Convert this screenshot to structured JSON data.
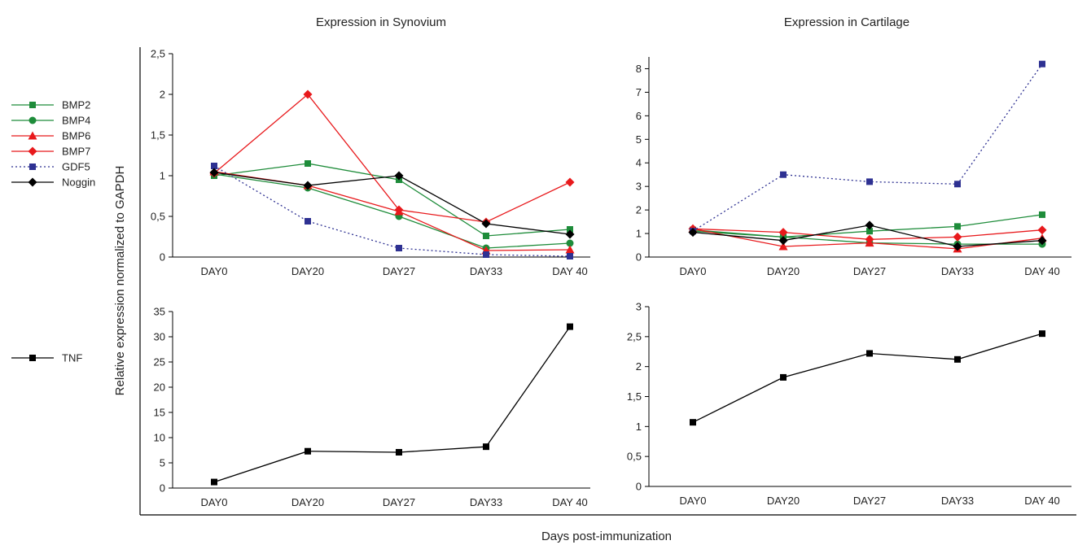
{
  "figure": {
    "ylabel": "Relative expression normalized to GAPDH",
    "xlabel": "Days post-immunization"
  },
  "legend": {
    "bmp": [
      {
        "name": "BMP2",
        "color": "#1e8c3a",
        "marker": "square",
        "dash": false
      },
      {
        "name": "BMP4",
        "color": "#1e8c3a",
        "marker": "circle",
        "dash": false
      },
      {
        "name": "BMP6",
        "color": "#e8191c",
        "marker": "triangle",
        "dash": false
      },
      {
        "name": "BMP7",
        "color": "#e8191c",
        "marker": "diamond",
        "dash": false
      },
      {
        "name": "GDF5",
        "color": "#2e3192",
        "marker": "square",
        "dash": true
      },
      {
        "name": "Noggin",
        "color": "#000000",
        "marker": "diamond",
        "dash": false
      }
    ],
    "tnf": [
      {
        "name": "TNF",
        "color": "#000000",
        "marker": "square",
        "dash": false
      }
    ]
  },
  "chart_data": [
    {
      "id": "synovium-bmp",
      "type": "line",
      "title": "Expression in Synovium",
      "categories": [
        "DAY0",
        "DAY20",
        "DAY27",
        "DAY33",
        "DAY 40"
      ],
      "ylim": [
        0,
        2.5
      ],
      "yticks": [
        "0",
        "0,5",
        "1",
        "1,5",
        "2",
        "2,5"
      ],
      "ytick_values": [
        0,
        0.5,
        1,
        1.5,
        2,
        2.5
      ],
      "grid": false,
      "series": [
        {
          "name": "BMP2",
          "color": "#1e8c3a",
          "marker": "square",
          "dash": false,
          "values": [
            1.0,
            1.15,
            0.95,
            0.26,
            0.34
          ]
        },
        {
          "name": "BMP4",
          "color": "#1e8c3a",
          "marker": "circle",
          "dash": false,
          "values": [
            1.02,
            0.85,
            0.5,
            0.11,
            0.17
          ]
        },
        {
          "name": "BMP6",
          "color": "#e8191c",
          "marker": "triangle",
          "dash": false,
          "values": [
            1.05,
            0.88,
            0.56,
            0.08,
            0.09
          ]
        },
        {
          "name": "BMP7",
          "color": "#e8191c",
          "marker": "diamond",
          "dash": false,
          "values": [
            1.03,
            2.0,
            0.58,
            0.43,
            0.92
          ]
        },
        {
          "name": "GDF5",
          "color": "#2e3192",
          "marker": "square",
          "dash": true,
          "values": [
            1.12,
            0.44,
            0.11,
            0.03,
            0.01
          ]
        },
        {
          "name": "Noggin",
          "color": "#000000",
          "marker": "diamond",
          "dash": false,
          "values": [
            1.04,
            0.88,
            1.0,
            0.41,
            0.28
          ]
        }
      ]
    },
    {
      "id": "cartilage-bmp",
      "type": "line",
      "title": "Expression in Cartilage",
      "categories": [
        "DAY0",
        "DAY20",
        "DAY27",
        "DAY33",
        "DAY 40"
      ],
      "ylim": [
        0,
        8.5
      ],
      "yticks": [
        "0",
        "1",
        "2",
        "3",
        "4",
        "5",
        "6",
        "7",
        "8"
      ],
      "ytick_values": [
        0,
        1,
        2,
        3,
        4,
        5,
        6,
        7,
        8
      ],
      "grid": false,
      "series": [
        {
          "name": "BMP2",
          "color": "#1e8c3a",
          "marker": "square",
          "dash": false,
          "values": [
            1.15,
            0.85,
            1.1,
            1.3,
            1.8
          ]
        },
        {
          "name": "BMP4",
          "color": "#1e8c3a",
          "marker": "circle",
          "dash": false,
          "values": [
            1.1,
            0.85,
            0.6,
            0.55,
            0.55
          ]
        },
        {
          "name": "BMP6",
          "color": "#e8191c",
          "marker": "triangle",
          "dash": false,
          "values": [
            1.2,
            0.45,
            0.6,
            0.35,
            0.8
          ]
        },
        {
          "name": "BMP7",
          "color": "#e8191c",
          "marker": "diamond",
          "dash": false,
          "values": [
            1.2,
            1.05,
            0.75,
            0.85,
            1.15
          ]
        },
        {
          "name": "GDF5",
          "color": "#2e3192",
          "marker": "square",
          "dash": true,
          "values": [
            1.1,
            3.5,
            3.2,
            3.1,
            8.2
          ]
        },
        {
          "name": "Noggin",
          "color": "#000000",
          "marker": "diamond",
          "dash": false,
          "values": [
            1.05,
            0.7,
            1.35,
            0.45,
            0.7
          ]
        }
      ]
    },
    {
      "id": "synovium-tnf",
      "type": "line",
      "title": "",
      "categories": [
        "DAY0",
        "DAY20",
        "DAY27",
        "DAY33",
        "DAY 40"
      ],
      "ylim": [
        0,
        35
      ],
      "yticks": [
        "0",
        "5",
        "10",
        "15",
        "20",
        "25",
        "30",
        "35"
      ],
      "ytick_values": [
        0,
        5,
        10,
        15,
        20,
        25,
        30,
        35
      ],
      "grid": false,
      "series": [
        {
          "name": "TNF",
          "color": "#000000",
          "marker": "square",
          "dash": false,
          "values": [
            1.2,
            7.3,
            7.1,
            8.2,
            32.0
          ]
        }
      ]
    },
    {
      "id": "cartilage-tnf",
      "type": "line",
      "title": "",
      "categories": [
        "DAY0",
        "DAY20",
        "DAY27",
        "DAY33",
        "DAY 40"
      ],
      "ylim": [
        0,
        3
      ],
      "yticks": [
        "0",
        "0,5",
        "1",
        "1,5",
        "2",
        "2,5",
        "3"
      ],
      "ytick_values": [
        0,
        0.5,
        1,
        1.5,
        2,
        2.5,
        3
      ],
      "grid": false,
      "series": [
        {
          "name": "TNF",
          "color": "#000000",
          "marker": "square",
          "dash": false,
          "values": [
            1.07,
            1.82,
            2.22,
            2.12,
            2.55
          ]
        }
      ]
    }
  ]
}
